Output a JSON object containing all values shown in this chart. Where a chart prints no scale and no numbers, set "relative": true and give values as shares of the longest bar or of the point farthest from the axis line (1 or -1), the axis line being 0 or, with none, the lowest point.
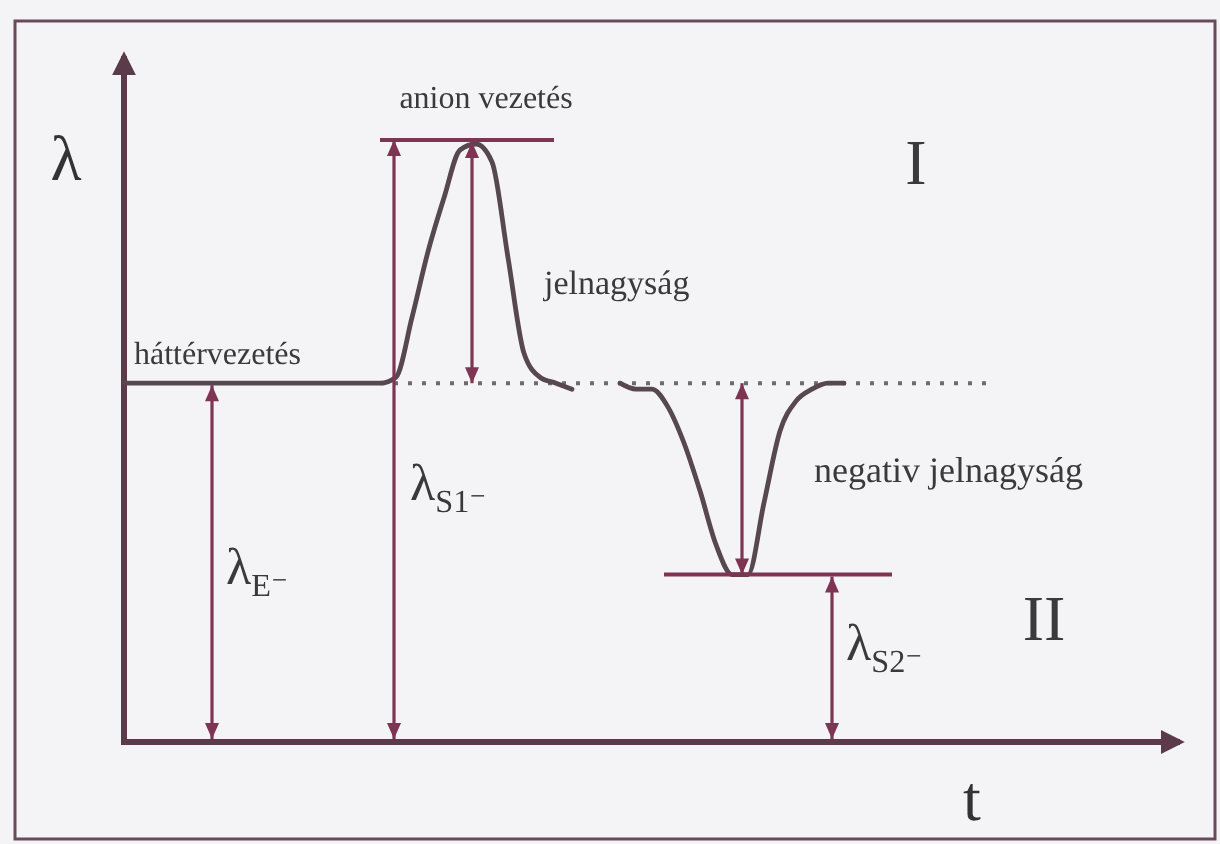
{
  "chart_data": {
    "type": "line",
    "relative": true,
    "xlabel": "t",
    "ylabel": "λ",
    "categories": [
      null,
      null,
      null,
      null,
      null,
      null,
      null,
      null,
      null,
      null,
      null,
      null,
      null,
      null,
      null,
      null,
      null,
      null,
      null,
      null,
      null,
      null,
      null,
      null,
      null,
      null,
      null,
      null,
      null,
      null,
      null,
      null,
      null,
      null,
      null,
      null,
      null,
      null,
      null,
      null,
      null,
      null,
      null,
      null,
      null,
      null,
      null,
      null,
      null,
      null,
      null,
      null,
      null,
      null,
      null,
      null,
      null,
      null,
      null,
      null,
      null,
      null,
      null,
      null,
      null,
      null,
      null
    ],
    "series": [
      {
        "color": "#57484f",
        "line_style": "solid",
        "values": [
          0.6,
          0.6,
          0.6,
          0.6,
          0.6,
          0.6,
          0.6,
          0.6,
          0.6,
          0.6,
          0.6,
          0.6,
          0.6,
          0.6,
          0.6,
          0.6,
          0.6,
          0.61,
          0.71,
          0.82,
          0.91,
          0.99,
          1,
          0.97,
          0.81,
          0.65,
          0.61,
          0.6,
          0.59,
          null,
          null,
          0.6,
          0.59,
          0.59,
          0.56,
          0.5,
          0.42,
          0.33,
          0.28,
          0.28,
          0.4,
          0.52,
          0.57,
          0.59,
          0.6,
          0.6,
          null,
          null,
          null,
          null,
          null,
          null,
          null,
          null,
          null,
          null,
          null,
          null,
          null,
          null,
          null,
          null,
          null,
          null,
          null,
          null,
          null
        ]
      },
      {
        "color": "#6e6a6e",
        "line_style": "dotted",
        "values": [
          null,
          null,
          null,
          null,
          null,
          null,
          null,
          null,
          null,
          null,
          null,
          null,
          null,
          null,
          null,
          null,
          0.6,
          0.6,
          0.6,
          0.6,
          0.6,
          0.6,
          0.6,
          0.6,
          0.6,
          0.6,
          0.6,
          0.6,
          0.6,
          0.6,
          0.6,
          0.6,
          0.6,
          0.6,
          0.6,
          0.6,
          0.6,
          0.6,
          0.6,
          0.6,
          0.6,
          0.6,
          0.6,
          0.6,
          0.6,
          0.6,
          0.6,
          0.6,
          0.6,
          0.6,
          0.6,
          0.6,
          0.6,
          0.6,
          0.6,
          null,
          null,
          null,
          null,
          null,
          null,
          null,
          null,
          null,
          null,
          null,
          null
        ]
      }
    ],
    "annotations": [
      "anion vezetés",
      "I",
      "jelnagyság",
      "háttérvezetés",
      "negativ jelnagyság",
      "λ$_{S1⁻}$",
      "λ$_{E⁻}$",
      "II",
      "λ$_{S2⁻}$"
    ]
  }
}
